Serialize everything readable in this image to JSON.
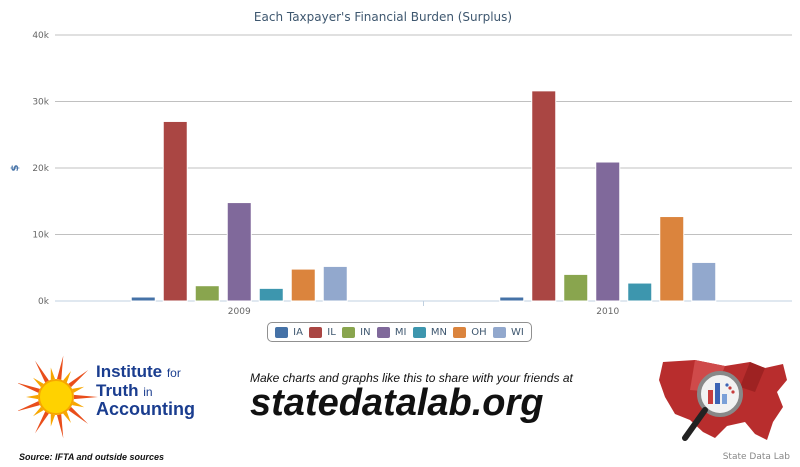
{
  "chart_data": {
    "type": "bar",
    "title": "Each Taxpayer's Financial Burden (Surplus)",
    "ylabel": "$",
    "xlabel": "",
    "categories": [
      "2009",
      "2010"
    ],
    "ylim": [
      0,
      40000
    ],
    "yticks": [
      "0k",
      "10k",
      "20k",
      "30k",
      "40k"
    ],
    "grid": true,
    "legend_position": "bottom-center",
    "series": [
      {
        "name": "IA",
        "color": "#4572a7",
        "values": [
          600,
          600
        ]
      },
      {
        "name": "IL",
        "color": "#aa4643",
        "values": [
          27000,
          31600
        ]
      },
      {
        "name": "IN",
        "color": "#89a54e",
        "values": [
          2300,
          4000
        ]
      },
      {
        "name": "MI",
        "color": "#80699b",
        "values": [
          14800,
          20900
        ]
      },
      {
        "name": "MN",
        "color": "#3d96ae",
        "values": [
          1900,
          2700
        ]
      },
      {
        "name": "OH",
        "color": "#db843d",
        "values": [
          4800,
          12700
        ]
      },
      {
        "name": "WI",
        "color": "#92a8cd",
        "values": [
          5200,
          5800
        ]
      }
    ]
  },
  "branding": {
    "ifta_line1": "Institute",
    "ifta_line1_small": "for",
    "ifta_line2": "Truth",
    "ifta_line2_small": "in",
    "ifta_line3": "Accounting",
    "promo_tagline": "Make charts and graphs like this to share with your friends at",
    "promo_site": "statedatalab.org",
    "source": "Source: IFTA and outside sources",
    "credit": "State Data Lab"
  }
}
